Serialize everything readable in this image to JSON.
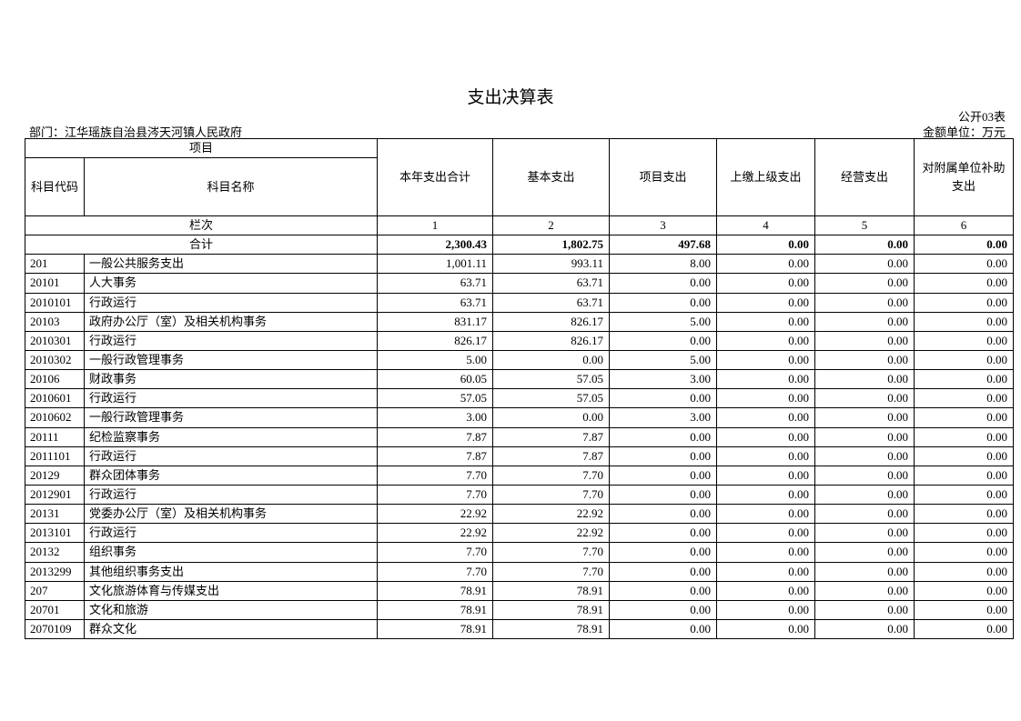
{
  "title": "支出决算表",
  "table_code": "公开03表",
  "department": "部门：江华瑶族自治县涔天河镇人民政府",
  "unit": "金额单位：万元",
  "headers": {
    "item": "项目",
    "code": "科目代码",
    "name": "科目名称",
    "total": "本年支出合计",
    "basic": "基本支出",
    "project": "项目支出",
    "upper": "上缴上级支出",
    "business": "经营支出",
    "subsidy": "对附属单位补助支出",
    "col_label": "栏次",
    "col_numbers": [
      "1",
      "2",
      "3",
      "4",
      "5",
      "6"
    ]
  },
  "summary": {
    "label": "合计",
    "values": [
      "2,300.43",
      "1,802.75",
      "497.68",
      "0.00",
      "0.00",
      "0.00"
    ]
  },
  "rows": [
    {
      "code": "201",
      "name": "一般公共服务支出",
      "values": [
        "1,001.11",
        "993.11",
        "8.00",
        "0.00",
        "0.00",
        "0.00"
      ]
    },
    {
      "code": "20101",
      "name": "人大事务",
      "values": [
        "63.71",
        "63.71",
        "0.00",
        "0.00",
        "0.00",
        "0.00"
      ]
    },
    {
      "code": "2010101",
      "name": "行政运行",
      "values": [
        "63.71",
        "63.71",
        "0.00",
        "0.00",
        "0.00",
        "0.00"
      ]
    },
    {
      "code": "20103",
      "name": "政府办公厅（室）及相关机构事务",
      "values": [
        "831.17",
        "826.17",
        "5.00",
        "0.00",
        "0.00",
        "0.00"
      ]
    },
    {
      "code": "2010301",
      "name": "行政运行",
      "values": [
        "826.17",
        "826.17",
        "0.00",
        "0.00",
        "0.00",
        "0.00"
      ]
    },
    {
      "code": "2010302",
      "name": "一般行政管理事务",
      "values": [
        "5.00",
        "0.00",
        "5.00",
        "0.00",
        "0.00",
        "0.00"
      ]
    },
    {
      "code": "20106",
      "name": "财政事务",
      "values": [
        "60.05",
        "57.05",
        "3.00",
        "0.00",
        "0.00",
        "0.00"
      ]
    },
    {
      "code": "2010601",
      "name": "行政运行",
      "values": [
        "57.05",
        "57.05",
        "0.00",
        "0.00",
        "0.00",
        "0.00"
      ]
    },
    {
      "code": "2010602",
      "name": "一般行政管理事务",
      "values": [
        "3.00",
        "0.00",
        "3.00",
        "0.00",
        "0.00",
        "0.00"
      ]
    },
    {
      "code": "20111",
      "name": "纪检监察事务",
      "values": [
        "7.87",
        "7.87",
        "0.00",
        "0.00",
        "0.00",
        "0.00"
      ]
    },
    {
      "code": "2011101",
      "name": "行政运行",
      "values": [
        "7.87",
        "7.87",
        "0.00",
        "0.00",
        "0.00",
        "0.00"
      ]
    },
    {
      "code": "20129",
      "name": "群众团体事务",
      "values": [
        "7.70",
        "7.70",
        "0.00",
        "0.00",
        "0.00",
        "0.00"
      ]
    },
    {
      "code": "2012901",
      "name": "行政运行",
      "values": [
        "7.70",
        "7.70",
        "0.00",
        "0.00",
        "0.00",
        "0.00"
      ]
    },
    {
      "code": "20131",
      "name": "党委办公厅（室）及相关机构事务",
      "values": [
        "22.92",
        "22.92",
        "0.00",
        "0.00",
        "0.00",
        "0.00"
      ]
    },
    {
      "code": "2013101",
      "name": "行政运行",
      "values": [
        "22.92",
        "22.92",
        "0.00",
        "0.00",
        "0.00",
        "0.00"
      ]
    },
    {
      "code": "20132",
      "name": "组织事务",
      "values": [
        "7.70",
        "7.70",
        "0.00",
        "0.00",
        "0.00",
        "0.00"
      ]
    },
    {
      "code": "2013299",
      "name": "其他组织事务支出",
      "values": [
        "7.70",
        "7.70",
        "0.00",
        "0.00",
        "0.00",
        "0.00"
      ]
    },
    {
      "code": "207",
      "name": "文化旅游体育与传媒支出",
      "values": [
        "78.91",
        "78.91",
        "0.00",
        "0.00",
        "0.00",
        "0.00"
      ]
    },
    {
      "code": "20701",
      "name": "文化和旅游",
      "values": [
        "78.91",
        "78.91",
        "0.00",
        "0.00",
        "0.00",
        "0.00"
      ]
    },
    {
      "code": "2070109",
      "name": "群众文化",
      "values": [
        "78.91",
        "78.91",
        "0.00",
        "0.00",
        "0.00",
        "0.00"
      ]
    }
  ]
}
